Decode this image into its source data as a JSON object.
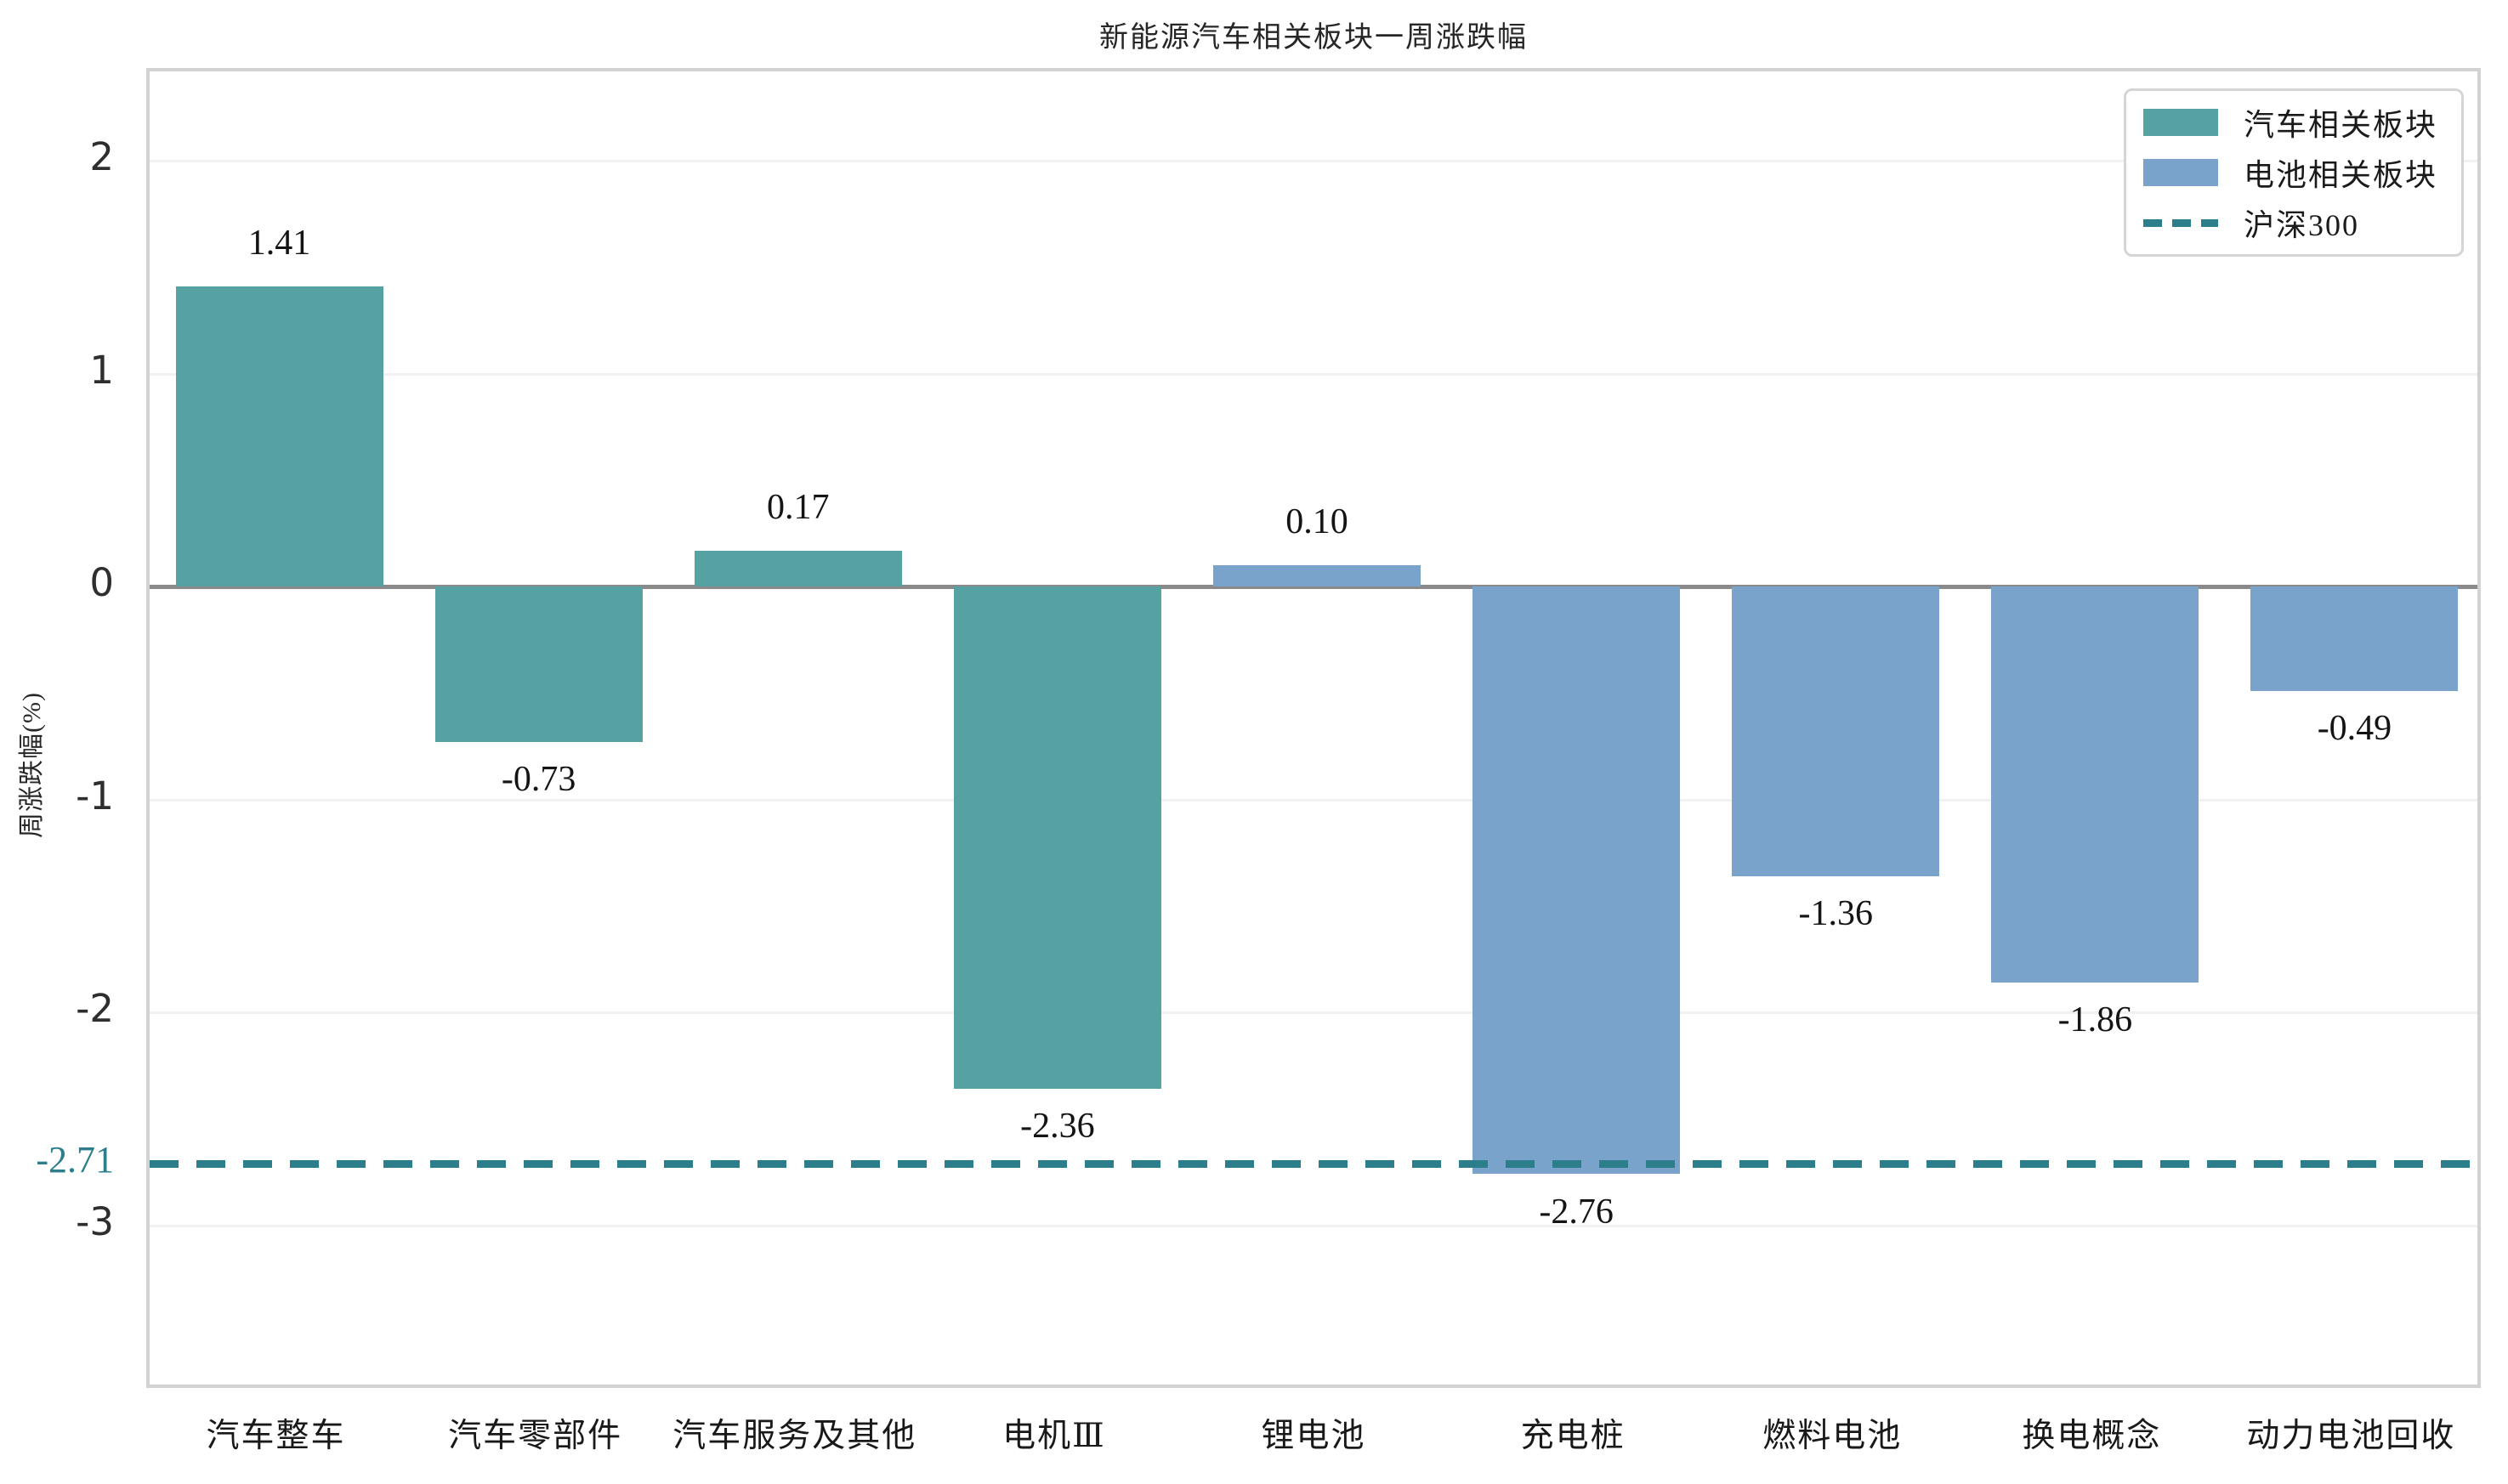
{
  "figure": {
    "title": "新能源汽车相关板块一周涨跌幅"
  },
  "chart_data": {
    "type": "bar",
    "title": "新能源汽车相关板块一周涨跌幅",
    "ylabel": "周涨跌幅(%)",
    "xlabel": "",
    "categories": [
      "汽车整车",
      "汽车零部件",
      "汽车服务及其他",
      "电机Ⅲ",
      "锂电池",
      "充电桩",
      "燃料电池",
      "换电概念",
      "动力电池回收"
    ],
    "series": [
      {
        "name": "汽车相关板块",
        "color": "#56a2a2",
        "values": [
          1.41,
          -0.73,
          0.17,
          -2.36,
          null,
          null,
          null,
          null,
          null
        ]
      },
      {
        "name": "电池相关板块",
        "color": "#79a3ca",
        "values": [
          null,
          null,
          null,
          null,
          0.1,
          -2.76,
          -1.36,
          -1.86,
          -0.49
        ]
      }
    ],
    "bar_value_labels": [
      "1.41",
      "-0.73",
      "0.17",
      "-2.36",
      "0.10",
      "-2.76",
      "-1.36",
      "-1.86",
      "-0.49"
    ],
    "ref_line": {
      "name": "沪深300",
      "value": -2.71,
      "value_label": "-2.71",
      "color": "#2b7e8a",
      "style": "dashed"
    },
    "yticks": [
      2,
      1,
      0,
      -1,
      -2,
      -3
    ],
    "ylim": [
      -3.78,
      2.42
    ],
    "grid": true,
    "legend_position": "upper right",
    "colors": {
      "zero_line": "#8a8a8a",
      "gridline": "#f1f1f1",
      "spine": "#d2d2d2",
      "background": "#ffffff"
    }
  }
}
